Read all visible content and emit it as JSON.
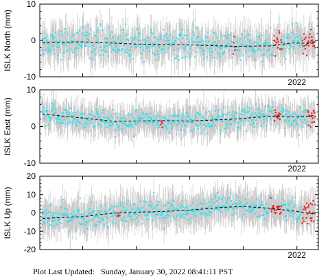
{
  "footer": {
    "label": "Plot Last Updated:",
    "value": "Sunday, January 30, 2022 08:41:11 PST"
  },
  "colors": {
    "point": "#33e0ee",
    "recent": "#e82020",
    "errorbar": "#c8c8c8",
    "trend": "#000000"
  },
  "chart_data": [
    {
      "type": "scatter",
      "title": "",
      "ylabel": "ISLK North (mm)",
      "ylim": [
        -10,
        10
      ],
      "yticks": [
        -10,
        0,
        10
      ],
      "xlim": [
        2017.2,
        2022.4
      ],
      "xticks": [
        {
          "value": 2022.0,
          "label": "2022"
        }
      ],
      "n_points": 560,
      "sigma": 4,
      "error_bar_halfwidth": 4,
      "recent_segments": [
        [
          2020.8,
          2020.85
        ],
        [
          2021.56,
          2021.72
        ],
        [
          2022.1,
          2022.35
        ]
      ],
      "trend": [
        [
          2017.25,
          -0.5
        ],
        [
          2018.0,
          -0.4
        ],
        [
          2019.0,
          -1.0
        ],
        [
          2020.0,
          -1.2
        ],
        [
          2020.8,
          -1.6
        ],
        [
          2021.5,
          -1.5
        ],
        [
          2021.9,
          -0.7
        ],
        [
          2022.35,
          -0.8
        ]
      ]
    },
    {
      "type": "scatter",
      "title": "",
      "ylabel": "ISLK East (mm)",
      "ylim": [
        -10,
        10
      ],
      "yticks": [
        -10,
        0,
        10
      ],
      "xlim": [
        2017.2,
        2022.4
      ],
      "xticks": [
        {
          "value": 2022.0,
          "label": "2022"
        }
      ],
      "n_points": 560,
      "sigma": 3,
      "error_bar_halfwidth": 3.5,
      "recent_segments": [
        [
          2019.45,
          2019.5
        ],
        [
          2021.58,
          2021.7
        ],
        [
          2022.2,
          2022.35
        ]
      ],
      "trend": [
        [
          2017.25,
          3.4
        ],
        [
          2018.0,
          2.3
        ],
        [
          2018.6,
          1.4
        ],
        [
          2019.5,
          1.6
        ],
        [
          2020.0,
          1.5
        ],
        [
          2020.8,
          2.0
        ],
        [
          2021.5,
          2.8
        ],
        [
          2022.0,
          2.6
        ],
        [
          2022.35,
          3.0
        ]
      ]
    },
    {
      "type": "scatter",
      "title": "",
      "ylabel": "ISLK Up (mm)",
      "ylim": [
        -20,
        20
      ],
      "yticks": [
        -20,
        -10,
        0,
        10,
        20
      ],
      "xlim": [
        2017.2,
        2022.4
      ],
      "xticks": [
        {
          "value": 2022.0,
          "label": "2022"
        }
      ],
      "n_points": 560,
      "sigma": 6,
      "error_bar_halfwidth": 8,
      "recent_segments": [
        [
          2018.65,
          2018.7
        ],
        [
          2021.5,
          2021.72
        ],
        [
          2022.1,
          2022.35
        ]
      ],
      "trend": [
        [
          2017.25,
          -3.0
        ],
        [
          2018.0,
          -2.0
        ],
        [
          2018.6,
          0.0
        ],
        [
          2019.5,
          0.8
        ],
        [
          2020.0,
          1.5
        ],
        [
          2020.6,
          3.0
        ],
        [
          2021.0,
          3.5
        ],
        [
          2021.5,
          2.5
        ],
        [
          2022.0,
          0.8
        ],
        [
          2022.35,
          -0.8
        ]
      ]
    }
  ]
}
